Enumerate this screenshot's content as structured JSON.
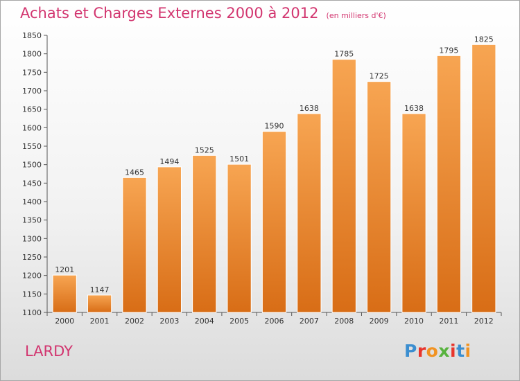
{
  "title": "Achats et Charges Externes 2000 à 2012",
  "subtitle": "(en milliers d'€)",
  "location": "LARDY",
  "logo": {
    "text": "Proxiti",
    "letter_colors": [
      "#3b8ed0",
      "#e8352c",
      "#f19322",
      "#57b33e",
      "#e8352c",
      "#3b8ed0",
      "#f19322"
    ]
  },
  "colors": {
    "title": "#d2356f",
    "bar_top": "#f7a552",
    "bar_bottom": "#d86d16",
    "axis": "#555555"
  },
  "chart_data": {
    "type": "bar",
    "title": "Achats et Charges Externes 2000 à 2012",
    "subtitle": "(en milliers d'€)",
    "categories": [
      "2000",
      "2001",
      "2002",
      "2003",
      "2004",
      "2005",
      "2006",
      "2007",
      "2008",
      "2009",
      "2010",
      "2011",
      "2012"
    ],
    "values": [
      1201,
      1147,
      1465,
      1494,
      1525,
      1501,
      1590,
      1638,
      1785,
      1725,
      1638,
      1795,
      1825
    ],
    "ylim": [
      1100,
      1850
    ],
    "yticks": [
      1100,
      1150,
      1200,
      1250,
      1300,
      1350,
      1400,
      1450,
      1500,
      1550,
      1600,
      1650,
      1700,
      1750,
      1800,
      1850
    ],
    "xlabel": "",
    "ylabel": "",
    "grid": false,
    "legend": "none"
  }
}
